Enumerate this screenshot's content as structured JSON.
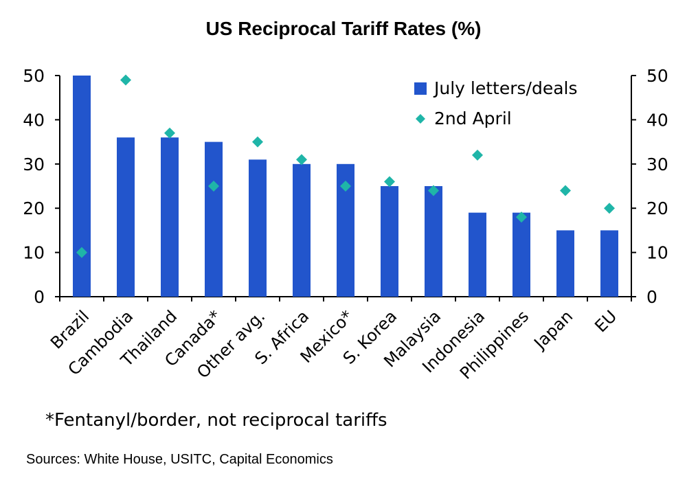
{
  "footnote": "*Fentanyl/border, not reciprocal tariffs",
  "source": "Sources: White House, USITC, Capital Economics",
  "colors": {
    "bar": "#2255cc",
    "marker": "#1fb5a8",
    "axis": "#000000"
  },
  "chart_data": {
    "type": "bar",
    "title": "US Reciprocal Tariff Rates (%)",
    "xlabel": "",
    "ylabel": "",
    "ylim": [
      0,
      50
    ],
    "yticks": [
      0,
      10,
      20,
      30,
      40,
      50
    ],
    "y2ticks": [
      0,
      10,
      20,
      30,
      40,
      50
    ],
    "categories": [
      "Brazil",
      "Cambodia",
      "Thailand",
      "Canada*",
      "Other avg.",
      "S. Africa",
      "Mexico*",
      "S. Korea",
      "Malaysia",
      "Indonesia",
      "Philippines",
      "Japan",
      "EU"
    ],
    "legend_position": "top-right",
    "series": [
      {
        "name": "July letters/deals",
        "kind": "bar",
        "values": [
          50,
          36,
          36,
          35,
          31,
          30,
          30,
          25,
          25,
          19,
          19,
          15,
          15
        ]
      },
      {
        "name": "2nd April",
        "kind": "marker",
        "values": [
          10,
          49,
          37,
          25,
          35,
          31,
          25,
          26,
          24,
          32,
          18,
          24,
          20
        ]
      }
    ]
  }
}
